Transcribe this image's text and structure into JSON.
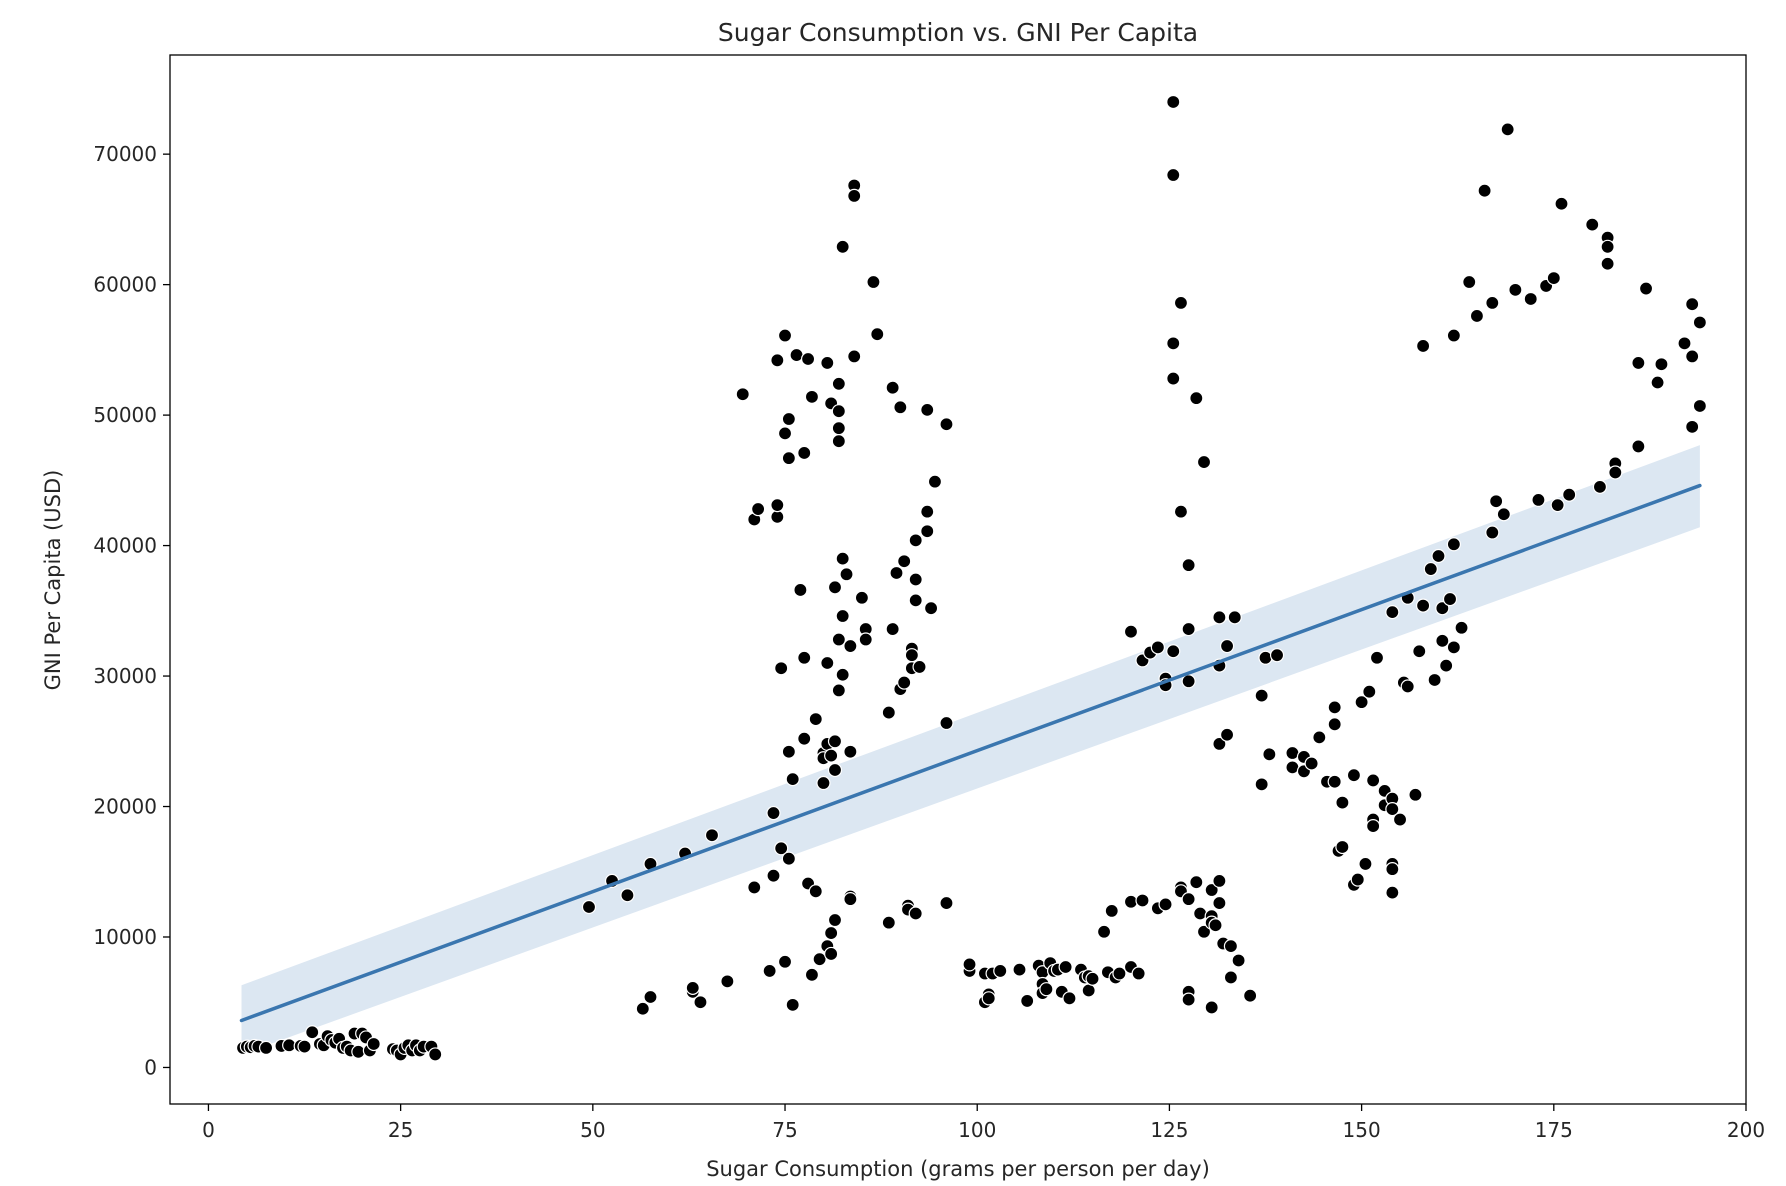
{
  "chart_data": {
    "type": "scatter",
    "title": "Sugar Consumption vs. GNI Per Capita",
    "xlabel": "Sugar Consumption (grams per person per day)",
    "ylabel": "GNI Per Capita (USD)",
    "xlim": [
      -5,
      200
    ],
    "ylim": [
      -2800,
      77600
    ],
    "xticks": [
      0,
      25,
      50,
      75,
      100,
      125,
      150,
      175,
      200
    ],
    "yticks": [
      0,
      10000,
      20000,
      30000,
      40000,
      50000,
      60000,
      70000
    ],
    "grid": false,
    "legend": "none",
    "point_color": "#000000",
    "regression_color": "#3a76af",
    "band_color": "#dce7f2",
    "regression": {
      "x": [
        4.3,
        194
      ],
      "y": [
        3600,
        44600
      ],
      "ci_lower": [
        1000,
        41400
      ],
      "ci_upper": [
        6300,
        47700
      ]
    },
    "points": [
      [
        4.5,
        1500
      ],
      [
        5,
        1600
      ],
      [
        5.5,
        1550
      ],
      [
        6,
        1650
      ],
      [
        6.5,
        1600
      ],
      [
        7.5,
        1500
      ],
      [
        9.5,
        1650
      ],
      [
        10.5,
        1700
      ],
      [
        12,
        1650
      ],
      [
        12.5,
        1600
      ],
      [
        13.5,
        2700
      ],
      [
        14.5,
        1800
      ],
      [
        15,
        1700
      ],
      [
        15.5,
        2400
      ],
      [
        16,
        2100
      ],
      [
        16.5,
        1900
      ],
      [
        17,
        2200
      ],
      [
        17.5,
        1500
      ],
      [
        18,
        1600
      ],
      [
        18.5,
        1300
      ],
      [
        19,
        2600
      ],
      [
        19.5,
        1200
      ],
      [
        20,
        2600
      ],
      [
        20.5,
        2300
      ],
      [
        21,
        1300
      ],
      [
        21.5,
        1800
      ],
      [
        24,
        1400
      ],
      [
        24.5,
        1300
      ],
      [
        25,
        1000
      ],
      [
        25.5,
        1500
      ],
      [
        26,
        1700
      ],
      [
        26.5,
        1300
      ],
      [
        27,
        1700
      ],
      [
        27.5,
        1300
      ],
      [
        28,
        1600
      ],
      [
        29,
        1600
      ],
      [
        29.5,
        1000
      ],
      [
        49.5,
        12300
      ],
      [
        52.5,
        14300
      ],
      [
        54.5,
        13200
      ],
      [
        56.5,
        4500
      ],
      [
        57.5,
        5400
      ],
      [
        57.5,
        15600
      ],
      [
        62,
        16400
      ],
      [
        63,
        5800
      ],
      [
        63,
        6100
      ],
      [
        64,
        5000
      ],
      [
        65.5,
        17800
      ],
      [
        67.5,
        6600
      ],
      [
        69.5,
        51600
      ],
      [
        71,
        13800
      ],
      [
        71,
        42000
      ],
      [
        71.5,
        42800
      ],
      [
        73,
        7400
      ],
      [
        73.5,
        14700
      ],
      [
        73.5,
        19500
      ],
      [
        74,
        42200
      ],
      [
        74,
        43100
      ],
      [
        74,
        54200
      ],
      [
        74.5,
        30600
      ],
      [
        74.5,
        16800
      ],
      [
        75,
        56100
      ],
      [
        75,
        48600
      ],
      [
        75,
        8100
      ],
      [
        75.5,
        49700
      ],
      [
        75.5,
        46700
      ],
      [
        75.5,
        24200
      ],
      [
        75.5,
        16000
      ],
      [
        76,
        4800
      ],
      [
        76,
        22100
      ],
      [
        76.5,
        54600
      ],
      [
        77,
        36600
      ],
      [
        77.5,
        47100
      ],
      [
        77.5,
        31400
      ],
      [
        77.5,
        25200
      ],
      [
        78,
        54300
      ],
      [
        78,
        14100
      ],
      [
        78.5,
        7100
      ],
      [
        78.5,
        51400
      ],
      [
        79,
        13500
      ],
      [
        79,
        26700
      ],
      [
        79.5,
        8300
      ],
      [
        80,
        21800
      ],
      [
        80,
        24100
      ],
      [
        80,
        23700
      ],
      [
        80.5,
        54000
      ],
      [
        80.5,
        31000
      ],
      [
        80.5,
        9300
      ],
      [
        80.5,
        24800
      ],
      [
        81,
        50900
      ],
      [
        81,
        23900
      ],
      [
        81,
        8700
      ],
      [
        81,
        10300
      ],
      [
        81.5,
        36800
      ],
      [
        81.5,
        25000
      ],
      [
        81.5,
        22800
      ],
      [
        81.5,
        11300
      ],
      [
        82,
        52400
      ],
      [
        82,
        49000
      ],
      [
        82,
        48000
      ],
      [
        82,
        50300
      ],
      [
        82,
        32800
      ],
      [
        82,
        28900
      ],
      [
        82.5,
        62900
      ],
      [
        82.5,
        39000
      ],
      [
        82.5,
        34600
      ],
      [
        82.5,
        30100
      ],
      [
        83,
        37800
      ],
      [
        83.5,
        32300
      ],
      [
        83.5,
        24200
      ],
      [
        83.5,
        13100
      ],
      [
        83.5,
        12900
      ],
      [
        84,
        54500
      ],
      [
        84,
        67600
      ],
      [
        84,
        66800
      ],
      [
        85,
        36000
      ],
      [
        85.5,
        33600
      ],
      [
        85.5,
        32800
      ],
      [
        86.5,
        60200
      ],
      [
        87,
        56200
      ],
      [
        88.5,
        27200
      ],
      [
        88.5,
        11100
      ],
      [
        89,
        33600
      ],
      [
        89,
        52100
      ],
      [
        89.5,
        37900
      ],
      [
        90,
        50600
      ],
      [
        90,
        29000
      ],
      [
        90.5,
        29500
      ],
      [
        90.5,
        38800
      ],
      [
        91,
        12400
      ],
      [
        91,
        12100
      ],
      [
        91.5,
        32100
      ],
      [
        91.5,
        31600
      ],
      [
        91.5,
        30600
      ],
      [
        92,
        11800
      ],
      [
        92,
        37400
      ],
      [
        92,
        35800
      ],
      [
        92,
        40400
      ],
      [
        92.5,
        30700
      ],
      [
        93.5,
        42600
      ],
      [
        93.5,
        41100
      ],
      [
        93.5,
        50400
      ],
      [
        94,
        35200
      ],
      [
        94.5,
        44900
      ],
      [
        96,
        49300
      ],
      [
        96,
        26400
      ],
      [
        96,
        12600
      ],
      [
        99,
        7400
      ],
      [
        99,
        7900
      ],
      [
        101,
        7200
      ],
      [
        101,
        5000
      ],
      [
        101.5,
        5600
      ],
      [
        101.5,
        5300
      ],
      [
        102,
        7200
      ],
      [
        103,
        7400
      ],
      [
        105.5,
        7500
      ],
      [
        106.5,
        5100
      ],
      [
        108,
        7800
      ],
      [
        108.5,
        7300
      ],
      [
        108.5,
        6400
      ],
      [
        108.5,
        5700
      ],
      [
        109,
        6000
      ],
      [
        109.5,
        8000
      ],
      [
        110,
        7400
      ],
      [
        110.5,
        7500
      ],
      [
        111,
        5800
      ],
      [
        111.5,
        7700
      ],
      [
        112,
        5300
      ],
      [
        113.5,
        7500
      ],
      [
        114,
        6900
      ],
      [
        114.5,
        5900
      ],
      [
        114.5,
        7000
      ],
      [
        115,
        6800
      ],
      [
        116.5,
        10400
      ],
      [
        117,
        7300
      ],
      [
        117.5,
        12000
      ],
      [
        118,
        6900
      ],
      [
        118.5,
        7200
      ],
      [
        120,
        7700
      ],
      [
        120,
        12700
      ],
      [
        120,
        33400
      ],
      [
        121,
        7200
      ],
      [
        121.5,
        31200
      ],
      [
        121.5,
        12800
      ],
      [
        122.5,
        31800
      ],
      [
        123.5,
        12200
      ],
      [
        123.5,
        32200
      ],
      [
        124.5,
        12500
      ],
      [
        124.5,
        29800
      ],
      [
        124.5,
        29300
      ],
      [
        125.5,
        68400
      ],
      [
        125.5,
        74000
      ],
      [
        125.5,
        55500
      ],
      [
        125.5,
        52800
      ],
      [
        125.5,
        31900
      ],
      [
        126.5,
        13800
      ],
      [
        126.5,
        13500
      ],
      [
        126.5,
        58600
      ],
      [
        126.5,
        42600
      ],
      [
        127.5,
        12900
      ],
      [
        127.5,
        38500
      ],
      [
        127.5,
        33600
      ],
      [
        127.5,
        29600
      ],
      [
        127.5,
        5800
      ],
      [
        127.5,
        5200
      ],
      [
        128.5,
        14200
      ],
      [
        128.5,
        51300
      ],
      [
        129,
        11800
      ],
      [
        129.5,
        46400
      ],
      [
        129.5,
        10400
      ],
      [
        130.5,
        13600
      ],
      [
        130.5,
        11600
      ],
      [
        130.5,
        11100
      ],
      [
        130.5,
        4600
      ],
      [
        131,
        10900
      ],
      [
        131.5,
        30800
      ],
      [
        131.5,
        24800
      ],
      [
        131.5,
        14300
      ],
      [
        131.5,
        12600
      ],
      [
        131.5,
        34500
      ],
      [
        132,
        9500
      ],
      [
        132.5,
        25500
      ],
      [
        132.5,
        32300
      ],
      [
        133,
        9300
      ],
      [
        133,
        6900
      ],
      [
        133.5,
        34500
      ],
      [
        134,
        8200
      ],
      [
        135.5,
        5500
      ],
      [
        137,
        28500
      ],
      [
        137,
        21700
      ],
      [
        137.5,
        31400
      ],
      [
        138,
        24000
      ],
      [
        139,
        31600
      ],
      [
        141,
        24100
      ],
      [
        141,
        23000
      ],
      [
        142.5,
        23800
      ],
      [
        142.5,
        22700
      ],
      [
        143.5,
        23300
      ],
      [
        144.5,
        25300
      ],
      [
        145.5,
        21900
      ],
      [
        146.5,
        27600
      ],
      [
        146.5,
        26300
      ],
      [
        146.5,
        21900
      ],
      [
        147,
        16600
      ],
      [
        147.5,
        20300
      ],
      [
        147.5,
        16900
      ],
      [
        149,
        22400
      ],
      [
        149,
        14000
      ],
      [
        149.5,
        14400
      ],
      [
        150,
        28000
      ],
      [
        150.5,
        15600
      ],
      [
        151,
        28800
      ],
      [
        151.5,
        22000
      ],
      [
        151.5,
        19000
      ],
      [
        151.5,
        18500
      ],
      [
        152,
        31400
      ],
      [
        153,
        21200
      ],
      [
        153,
        20100
      ],
      [
        154,
        20600
      ],
      [
        154,
        19800
      ],
      [
        154,
        15600
      ],
      [
        154,
        15200
      ],
      [
        154,
        13400
      ],
      [
        154,
        34900
      ],
      [
        155,
        19000
      ],
      [
        155.5,
        29500
      ],
      [
        156,
        36000
      ],
      [
        156,
        29200
      ],
      [
        157,
        20900
      ],
      [
        157.5,
        31900
      ],
      [
        158,
        55300
      ],
      [
        158,
        35400
      ],
      [
        159,
        38200
      ],
      [
        159.5,
        29700
      ],
      [
        160,
        39200
      ],
      [
        160.5,
        35200
      ],
      [
        160.5,
        32700
      ],
      [
        161,
        30800
      ],
      [
        161.5,
        35900
      ],
      [
        162,
        40100
      ],
      [
        162,
        32200
      ],
      [
        162,
        56100
      ],
      [
        163,
        33700
      ],
      [
        164,
        60200
      ],
      [
        165,
        57600
      ],
      [
        166,
        67200
      ],
      [
        167,
        58600
      ],
      [
        167,
        41000
      ],
      [
        167.5,
        43400
      ],
      [
        168.5,
        42400
      ],
      [
        169,
        71900
      ],
      [
        170,
        59600
      ],
      [
        172,
        58900
      ],
      [
        173,
        43500
      ],
      [
        174,
        59900
      ],
      [
        175,
        60500
      ],
      [
        175.5,
        43100
      ],
      [
        176,
        66200
      ],
      [
        177,
        43900
      ],
      [
        180,
        64600
      ],
      [
        181,
        44500
      ],
      [
        182,
        63600
      ],
      [
        182,
        62900
      ],
      [
        182,
        61600
      ],
      [
        183,
        46300
      ],
      [
        183,
        45600
      ],
      [
        186,
        54000
      ],
      [
        186,
        47600
      ],
      [
        187,
        59700
      ],
      [
        188.5,
        52500
      ],
      [
        189,
        53900
      ],
      [
        192,
        55500
      ],
      [
        193,
        58500
      ],
      [
        193,
        54500
      ],
      [
        193,
        49100
      ],
      [
        194,
        57100
      ],
      [
        194,
        50700
      ]
    ]
  }
}
